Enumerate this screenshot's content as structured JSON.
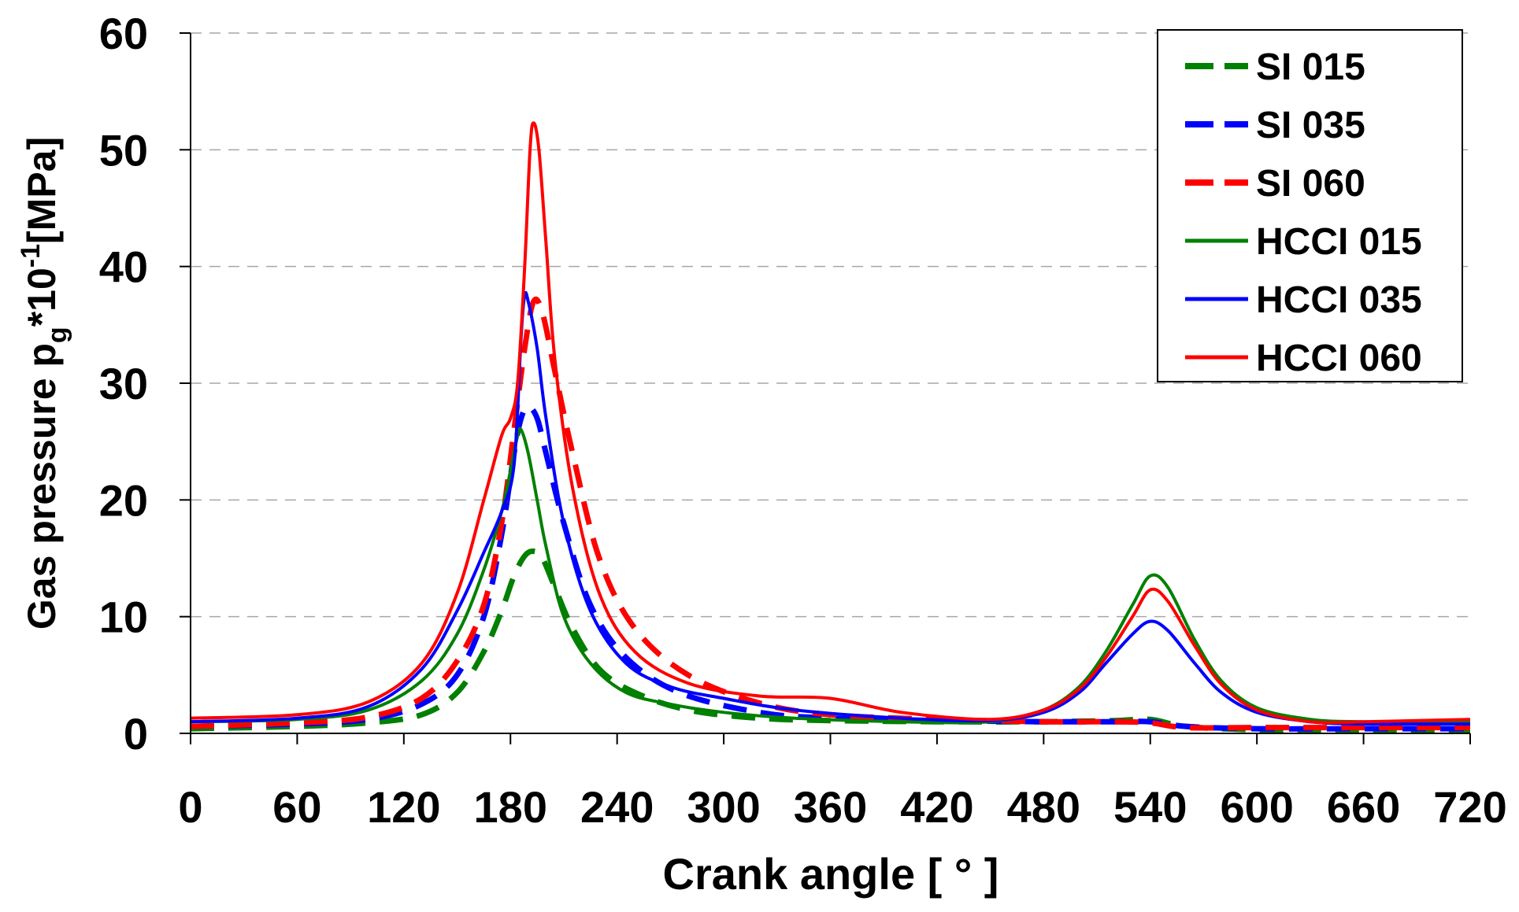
{
  "chart_data": {
    "type": "line",
    "xlabel": "Crank angle [ ° ]",
    "ylabel": {
      "prefix": "Gas pressure  p",
      "subscript": "g",
      "mid": "*10",
      "superscript": "-1",
      "suffix": "[MPa]"
    },
    "xlim": [
      0,
      720
    ],
    "ylim": [
      0,
      60
    ],
    "xticks": [
      0,
      60,
      120,
      180,
      240,
      300,
      360,
      420,
      480,
      540,
      600,
      660,
      720
    ],
    "yticks": [
      0,
      10,
      20,
      30,
      40,
      50,
      60
    ],
    "grid": {
      "y_major": true,
      "style": "dashed"
    },
    "legend": {
      "position": "top-right"
    },
    "series": [
      {
        "name": "SI 015",
        "color": "#008000",
        "style": "dashed",
        "x": [
          0,
          60,
          100,
          130,
          150,
          165,
          175,
          182,
          188,
          193,
          198,
          205,
          215,
          230,
          250,
          280,
          320,
          360,
          420,
          480,
          520,
          540,
          560,
          600,
          660,
          720
        ],
        "y": [
          0.4,
          0.6,
          0.9,
          1.6,
          3.5,
          7,
          10.5,
          13.5,
          15.2,
          15.6,
          15,
          12.5,
          9,
          5.5,
          3.5,
          2,
          1.3,
          1.1,
          1,
          1,
          1.1,
          1.2,
          0.6,
          0.3,
          0.3,
          0.3
        ]
      },
      {
        "name": "SI 035",
        "color": "#0000ff",
        "style": "dashed",
        "x": [
          0,
          60,
          100,
          130,
          150,
          165,
          175,
          182,
          186,
          190,
          195,
          200,
          210,
          225,
          245,
          275,
          320,
          360,
          420,
          480,
          520,
          540,
          560,
          600,
          660,
          720
        ],
        "y": [
          0.6,
          0.8,
          1.2,
          2.5,
          5,
          10,
          17,
          24,
          27,
          28,
          27,
          24,
          18,
          11,
          6.5,
          3.5,
          1.8,
          1.3,
          1.1,
          1,
          1,
          1,
          0.6,
          0.4,
          0.4,
          0.4
        ]
      },
      {
        "name": "SI 060",
        "color": "#ff0000",
        "style": "dashed",
        "x": [
          0,
          60,
          100,
          130,
          150,
          165,
          175,
          182,
          188,
          193,
          198,
          205,
          215,
          230,
          250,
          280,
          320,
          360,
          420,
          480,
          520,
          540,
          560,
          600,
          660,
          720
        ],
        "y": [
          0.6,
          0.9,
          1.4,
          3,
          6.2,
          11,
          18,
          26,
          33,
          37,
          36,
          31,
          24,
          15,
          9,
          5,
          2.6,
          1.6,
          1.2,
          1,
          1,
          0.9,
          0.5,
          0.5,
          0.5,
          0.5
        ]
      },
      {
        "name": "HCCI 015",
        "color": "#008000",
        "style": "solid",
        "x": [
          0,
          60,
          100,
          130,
          150,
          165,
          175,
          180,
          184,
          186,
          190,
          195,
          200,
          210,
          225,
          245,
          270,
          300,
          340,
          400,
          450,
          480,
          500,
          515,
          530,
          540,
          550,
          565,
          580,
          600,
          630,
          660,
          720
        ],
        "y": [
          1,
          1.2,
          2,
          4.5,
          8.5,
          14,
          19,
          22.5,
          25.5,
          26,
          24,
          20,
          16,
          10,
          6,
          3.5,
          2.5,
          1.8,
          1.3,
          1,
          1,
          2,
          4,
          7,
          11,
          13.5,
          12.5,
          8,
          4.5,
          2.2,
          1.2,
          1,
          1
        ]
      },
      {
        "name": "HCCI 035",
        "color": "#0000ff",
        "style": "solid",
        "x": [
          0,
          60,
          100,
          130,
          150,
          165,
          175,
          182,
          186,
          188,
          190,
          195,
          200,
          210,
          225,
          245,
          270,
          300,
          340,
          400,
          450,
          480,
          500,
          515,
          530,
          540,
          550,
          565,
          580,
          600,
          630,
          660,
          720
        ],
        "y": [
          1,
          1.3,
          2.3,
          5.5,
          10.5,
          15.5,
          19,
          23,
          34,
          37.5,
          37,
          33,
          27,
          18,
          10.5,
          6,
          4,
          3,
          2,
          1.3,
          1.1,
          1.8,
          3.5,
          6,
          8.5,
          9.6,
          8.8,
          6,
          3.5,
          1.8,
          1,
          0.8,
          0.8
        ]
      },
      {
        "name": "HCCI 060",
        "color": "#ff0000",
        "style": "solid",
        "x": [
          0,
          60,
          100,
          130,
          150,
          165,
          175,
          180,
          184,
          188,
          191,
          193,
          196,
          200,
          205,
          215,
          230,
          250,
          280,
          320,
          360,
          400,
          450,
          480,
          500,
          515,
          530,
          540,
          550,
          565,
          580,
          600,
          630,
          660,
          720
        ],
        "y": [
          1.3,
          1.6,
          2.7,
          6,
          12,
          20,
          25.5,
          27,
          30,
          40,
          50,
          52.3,
          50,
          42,
          32,
          21,
          12,
          7,
          4.3,
          3.2,
          3,
          1.8,
          1.2,
          2,
          3.8,
          6.5,
          10,
          12.3,
          11.3,
          7.5,
          4.2,
          2,
          1,
          1,
          1.2
        ]
      }
    ]
  }
}
